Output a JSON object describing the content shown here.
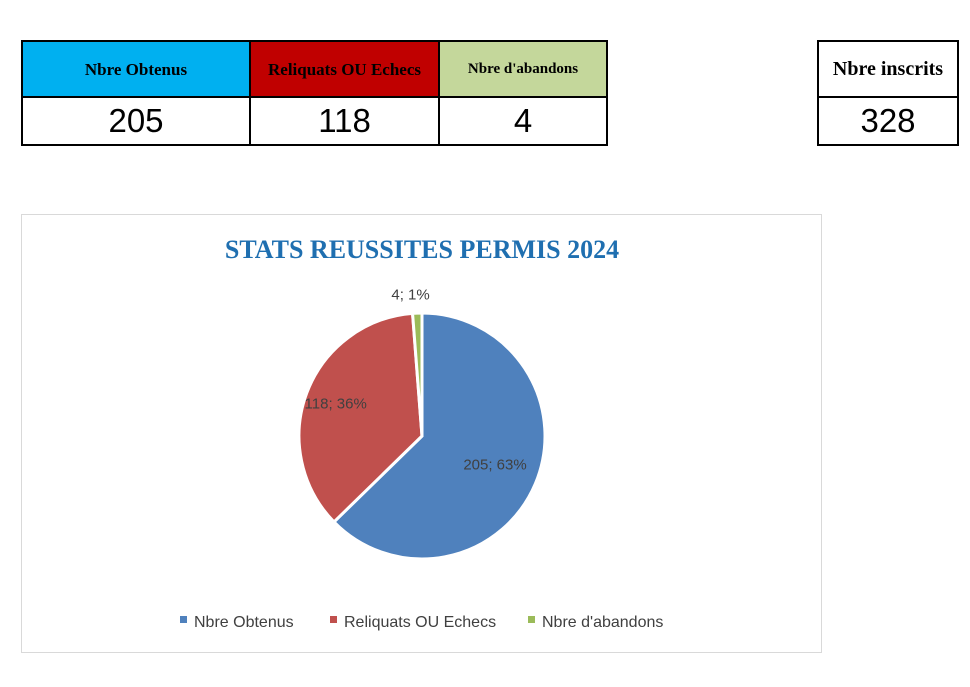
{
  "summary_table": {
    "headers": [
      "Nbre Obtenus",
      "Reliquats OU Echecs",
      "Nbre d'abandons"
    ],
    "values": [
      "205",
      "118",
      "4"
    ]
  },
  "total_table": {
    "header": "Nbre inscrits",
    "value": "328"
  },
  "colors": {
    "header_blue": "#00b0f0",
    "header_red": "#c00000",
    "header_green": "#c4d79b",
    "title": "#1f6fb0"
  },
  "chart_data": {
    "type": "pie",
    "title": "STATS REUSSITES PERMIS 2024",
    "categories": [
      "Nbre Obtenus",
      "Reliquats OU Echecs",
      "Nbre d'abandons"
    ],
    "values": [
      205,
      118,
      4
    ],
    "data_labels": [
      "205; 63%",
      "118; 36%",
      "4; 1%"
    ],
    "colors": [
      "#4f81bd",
      "#c0504d",
      "#9bbb59"
    ],
    "legend_position": "bottom"
  }
}
